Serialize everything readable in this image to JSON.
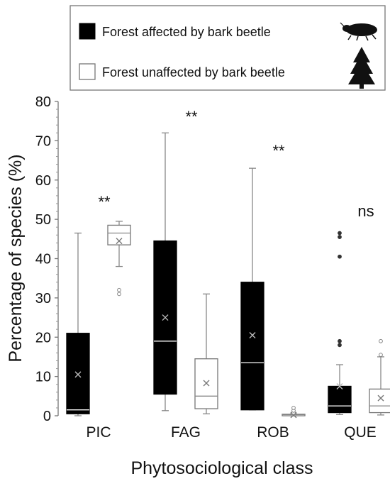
{
  "chart_data": {
    "type": "boxplot",
    "ylabel": "Percentage of species (%)",
    "xlabel": "Phytosociological class",
    "ylim": [
      0,
      80
    ],
    "yticks": [
      0,
      10,
      20,
      30,
      40,
      50,
      60,
      70,
      80
    ],
    "categories": [
      "PIC",
      "FAG",
      "ROB",
      "QUE"
    ],
    "legend": {
      "placement": "top",
      "entries": [
        {
          "label": "Forest affected by bark beetle",
          "icon": "bark-beetle-icon"
        },
        {
          "label": "Forest unaffected by bark beetle",
          "icon": "conifer-tree-icon"
        }
      ]
    },
    "colors": {
      "affected": "#000000",
      "unaffected": "#ffffff",
      "whisker": "#888888"
    },
    "significance": [
      "**",
      "**",
      "**",
      "ns"
    ],
    "series": [
      {
        "name": "Forest affected by bark beetle",
        "boxes": [
          {
            "min": 0,
            "q1": 0.5,
            "median": 1.5,
            "q3": 21,
            "max": 46.5,
            "mean": 10.5,
            "outliers": []
          },
          {
            "min": 1.3,
            "q1": 5.5,
            "median": 19,
            "q3": 44.5,
            "max": 72,
            "mean": 25,
            "outliers": []
          },
          {
            "min": 1.5,
            "q1": 1.5,
            "median": 13.5,
            "q3": 34,
            "max": 63,
            "mean": 20.5,
            "outliers": []
          },
          {
            "min": 0.3,
            "q1": 0.8,
            "median": 2.5,
            "q3": 7.5,
            "max": 13,
            "mean": 7.5,
            "outliers": [
              18,
              19,
              40.5,
              45.5,
              46.5
            ]
          }
        ]
      },
      {
        "name": "Forest unaffected by bark beetle",
        "boxes": [
          {
            "min": 38,
            "q1": 43.5,
            "median": 46.5,
            "q3": 48.5,
            "max": 49.5,
            "mean": 44.5,
            "outliers": [
              31,
              32
            ]
          },
          {
            "min": 0.5,
            "q1": 1.8,
            "median": 5,
            "q3": 14.5,
            "max": 31,
            "mean": 8.3,
            "outliers": []
          },
          {
            "min": 0,
            "q1": 0,
            "median": 0.3,
            "q3": 0.4,
            "max": 0.5,
            "mean": 0.2,
            "outliers": [
              0.8,
              1.3,
              2
            ]
          },
          {
            "min": 0.2,
            "q1": 0.8,
            "median": 2.5,
            "q3": 6.8,
            "max": 15,
            "mean": 4.5,
            "outliers": [
              15.5,
              19
            ]
          }
        ]
      }
    ]
  }
}
